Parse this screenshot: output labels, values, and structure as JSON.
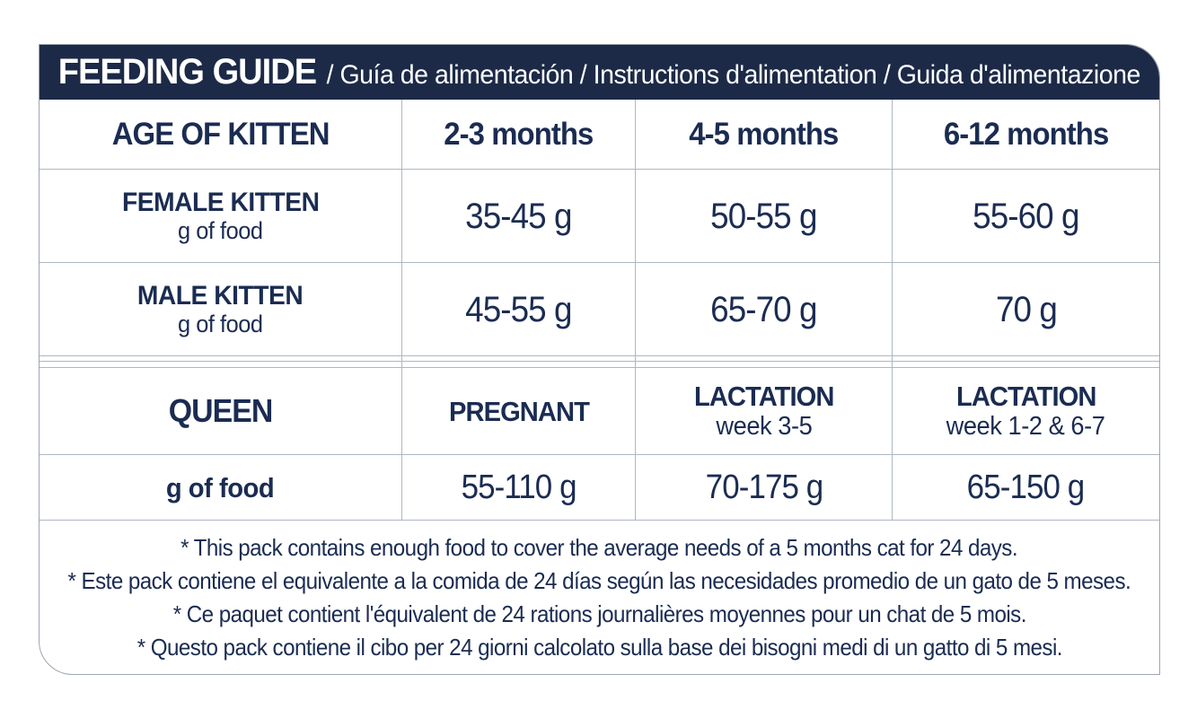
{
  "colors": {
    "navy_band": "#1c2a47",
    "navy_text": "#1b2c52",
    "border": "#aeb7c2",
    "outer_border": "#9ca6b2"
  },
  "header": {
    "title": "FEEDING GUIDE",
    "subtitle": "/ Guía de alimentación / Instructions d'alimentation / Guida d'alimentazione"
  },
  "kitten_section": {
    "row_header": "AGE OF KITTEN",
    "age_columns": [
      "2-3 months",
      "4-5 months",
      "6-12 months"
    ],
    "rows": [
      {
        "label": "FEMALE KITTEN",
        "sublabel": "g of food",
        "values": [
          "35-45 g",
          "50-55 g",
          "55-60 g"
        ]
      },
      {
        "label": "MALE KITTEN",
        "sublabel": "g of food",
        "values": [
          "45-55 g",
          "65-70 g",
          "70 g"
        ]
      }
    ]
  },
  "queen_section": {
    "row_header": "QUEEN",
    "columns": [
      {
        "label": "PREGNANT"
      },
      {
        "label": "LACTATION",
        "sublabel": "week 3-5"
      },
      {
        "label": "LACTATION",
        "sublabel": "week 1-2 & 6-7"
      }
    ],
    "food_row": {
      "label": "g of food",
      "values": [
        "55-110 g",
        "70-175 g",
        "65-150 g"
      ]
    }
  },
  "footnotes": [
    "* This pack contains enough food to cover the average needs of a 5 months cat for 24 days.",
    "* Este pack contiene el equivalente a la comida de 24 días según las necesidades promedio de un gato de 5 meses.",
    "* Ce paquet contient l'équivalent de 24 rations journalières moyennes pour un chat de 5 mois.",
    "* Questo pack contiene il cibo per 24 giorni calcolato sulla base dei bisogni medi di un gatto di 5 mesi."
  ]
}
